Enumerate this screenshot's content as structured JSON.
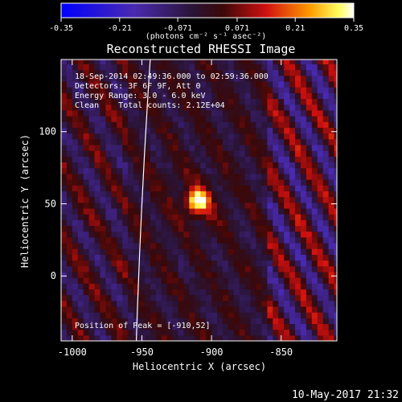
{
  "chart_data": {
    "type": "heatmap",
    "title": "Reconstructed RHESSI Image",
    "colorbar": {
      "min": -0.35,
      "max": 0.35,
      "ticks": [
        -0.35,
        -0.21,
        -0.071,
        0.071,
        0.21,
        0.35
      ],
      "tick_labels": [
        "-0.35",
        "-0.21",
        "-0.071",
        "0.071",
        "0.21",
        "0.35"
      ],
      "unit_label": "(photons cm⁻² s⁻¹ asec⁻²)"
    },
    "xlabel": "Heliocentric X (arcsec)",
    "ylabel": "Heliocentric Y (arcsec)",
    "xlim": [
      -1008,
      -810
    ],
    "ylim": [
      -45,
      150
    ],
    "xticks": [
      -1000,
      -950,
      -900,
      -850
    ],
    "xtick_labels": [
      "-1000",
      "-950",
      "-900",
      "-850"
    ],
    "yticks": [
      0,
      50,
      100
    ],
    "ytick_labels": [
      "0",
      "50",
      "100"
    ],
    "peak": {
      "x": -910,
      "y": 52,
      "value": 0.35
    },
    "annotations": [
      "18-Sep-2014 02:49:36.000 to 02:59:36.000",
      "Detectors: 3F 6F 9F, Att 0",
      "Energy Range: 3.0 - 6.0 keV",
      "Clean    Total counts: 2.12E+04"
    ],
    "peak_label": "Position of Peak = [-910,52]",
    "limb": {
      "x_at_top": -944,
      "x_at_bottom": -954
    },
    "timestamp": "10-May-2017 21:32"
  },
  "colors": {
    "background": "#000000",
    "colormap": [
      "#0000ff",
      "#3a2aa0",
      "#2a1a4a",
      "#3a0a10",
      "#c81010",
      "#ff8c00",
      "#ffff40",
      "#ffffff"
    ]
  }
}
